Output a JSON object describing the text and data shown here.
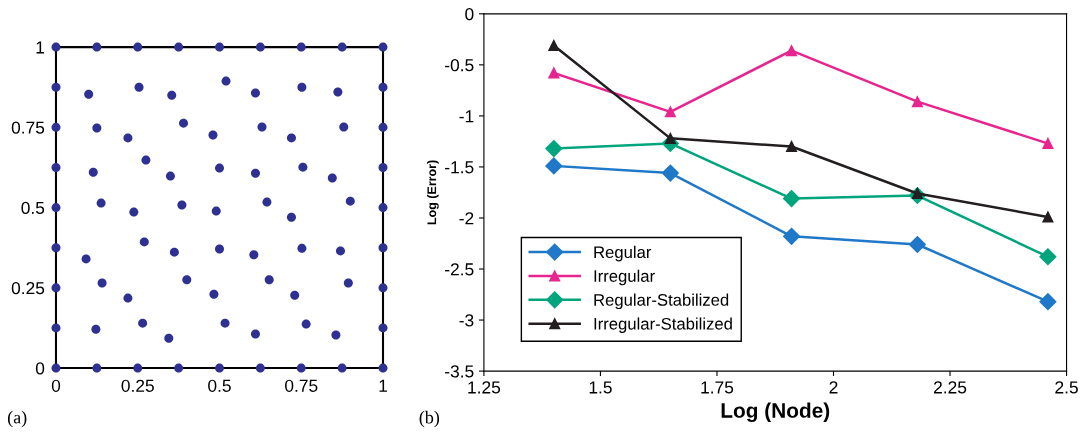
{
  "chart_data": [
    {
      "type": "scatter",
      "marker": "circle",
      "xlim": [
        0,
        1
      ],
      "ylim": [
        0,
        1
      ],
      "xticks": [
        0,
        0.25,
        0.5,
        0.75,
        1
      ],
      "yticks": [
        0,
        0.25,
        0.5,
        0.75,
        1
      ],
      "grid": false,
      "annotations": [
        "(a)"
      ],
      "series": [
        {
          "color": "#2e3192",
          "x": [
            0,
            0.125,
            0.25,
            0.375,
            0.5,
            0.625,
            0.75,
            0.875,
            1,
            0,
            0.125,
            0.25,
            0.375,
            0.5,
            0.625,
            0.75,
            0.875,
            1,
            0,
            0,
            0,
            0,
            0,
            0,
            0,
            1,
            1,
            1,
            1,
            1,
            1,
            1,
            0.1,
            0.254,
            0.354,
            0.52,
            0.61,
            0.752,
            0.862,
            0.125,
            0.22,
            0.39,
            0.48,
            0.63,
            0.72,
            0.88,
            0.114,
            0.275,
            0.35,
            0.5,
            0.61,
            0.755,
            0.845,
            0.138,
            0.238,
            0.385,
            0.49,
            0.645,
            0.72,
            0.9,
            0.27,
            0.362,
            0.5,
            0.605,
            0.752,
            0.87,
            0.092,
            0.141,
            0.4,
            0.652,
            0.894,
            0.22,
            0.483,
            0.73,
            0.122,
            0.265,
            0.345,
            0.517,
            0.61,
            0.765,
            0.856
          ],
          "values": [
            1,
            1,
            1,
            1,
            1,
            1,
            1,
            1,
            1,
            0,
            0,
            0,
            0,
            0,
            0,
            0,
            0,
            0,
            0.125,
            0.25,
            0.375,
            0.5,
            0.625,
            0.75,
            0.875,
            0.125,
            0.25,
            0.375,
            0.5,
            0.625,
            0.75,
            0.875,
            0.853,
            0.875,
            0.85,
            0.894,
            0.857,
            0.875,
            0.86,
            0.748,
            0.717,
            0.763,
            0.726,
            0.751,
            0.717,
            0.751,
            0.61,
            0.648,
            0.598,
            0.623,
            0.607,
            0.626,
            0.592,
            0.514,
            0.486,
            0.508,
            0.489,
            0.517,
            0.47,
            0.52,
            0.393,
            0.361,
            0.371,
            0.353,
            0.373,
            0.365,
            0.34,
            0.265,
            0.275,
            0.275,
            0.265,
            0.218,
            0.23,
            0.227,
            0.121,
            0.14,
            0.093,
            0.14,
            0.106,
            0.137,
            0.103
          ]
        }
      ]
    },
    {
      "type": "line",
      "xlabel": "Log (Node)",
      "ylabel": "Log (Error)",
      "xlim": [
        1.25,
        2.5
      ],
      "ylim": [
        -3.5,
        0
      ],
      "xticks": [
        1.25,
        1.5,
        1.75,
        2,
        2.25,
        2.5
      ],
      "yticks": [
        -3.5,
        -3,
        -2.5,
        -2,
        -1.5,
        -1,
        -0.5,
        0
      ],
      "grid": false,
      "legend": "bottom left",
      "annotations": [
        "(b)"
      ],
      "x": [
        1.4,
        1.65,
        1.91,
        2.18,
        2.46
      ],
      "series": [
        {
          "name": "Regular",
          "color": "#1f78c8",
          "marker": "diamond",
          "values": [
            -1.49,
            -1.56,
            -2.18,
            -2.26,
            -2.82
          ]
        },
        {
          "name": "Irregular",
          "color": "#e8258e",
          "marker": "triangle",
          "values": [
            -0.58,
            -0.96,
            -0.36,
            -0.86,
            -1.27
          ]
        },
        {
          "name": "Regular-Stabilized",
          "color": "#00a57e",
          "marker": "diamond",
          "values": [
            -1.32,
            -1.27,
            -1.81,
            -1.78,
            -2.38
          ]
        },
        {
          "name": "Irregular-Stabilized",
          "color": "#231f20",
          "marker": "triangle",
          "values": [
            -0.31,
            -1.22,
            -1.3,
            -1.76,
            -1.99
          ]
        }
      ]
    }
  ]
}
